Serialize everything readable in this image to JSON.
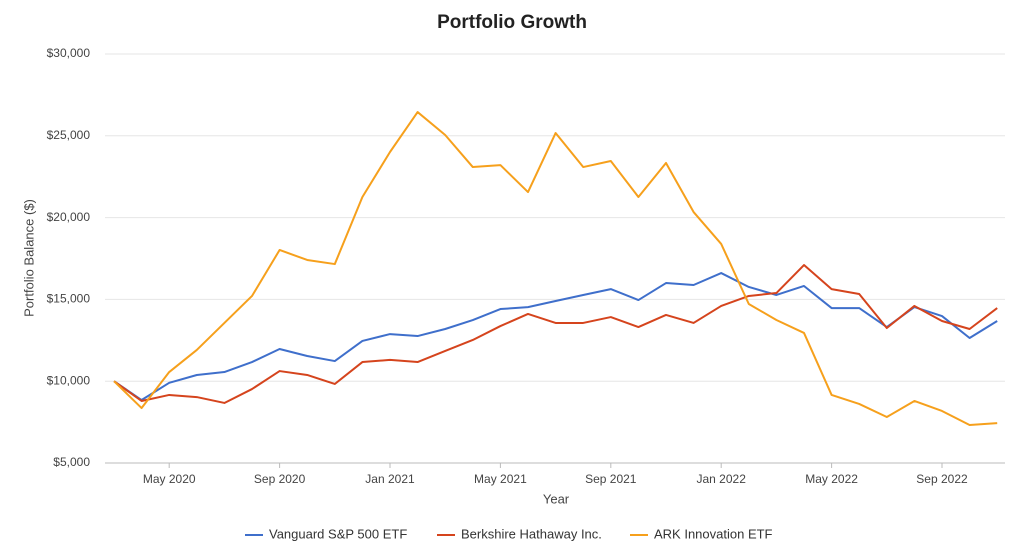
{
  "chart_data": {
    "type": "line",
    "title": "Portfolio Growth",
    "x_label": "Year",
    "y_label": "Portfolio Balance ($)",
    "x": [
      "Mar 2020",
      "Apr 2020",
      "May 2020",
      "Jun 2020",
      "Jul 2020",
      "Aug 2020",
      "Sep 2020",
      "Oct 2020",
      "Nov 2020",
      "Dec 2020",
      "Jan 2021",
      "Feb 2021",
      "Mar 2021",
      "Apr 2021",
      "May 2021",
      "Jun 2021",
      "Jul 2021",
      "Aug 2021",
      "Sep 2021",
      "Oct 2021",
      "Nov 2021",
      "Dec 2021",
      "Jan 2022",
      "Feb 2022",
      "Mar 2022",
      "Apr 2022",
      "May 2022",
      "Jun 2022",
      "Jul 2022",
      "Aug 2022",
      "Sep 2022",
      "Oct 2022",
      "Nov 2022"
    ],
    "xticks": [
      "May 2020",
      "Sep 2020",
      "Jan 2021",
      "May 2021",
      "Sep 2021",
      "Jan 2022",
      "May 2022",
      "Sep 2022"
    ],
    "ylim": [
      5000,
      30000
    ],
    "yticks": [
      {
        "value": 5000,
        "label": "$5,000"
      },
      {
        "value": 10000,
        "label": "$10,000"
      },
      {
        "value": 15000,
        "label": "$15,000"
      },
      {
        "value": 20000,
        "label": "$20,000"
      },
      {
        "value": 25000,
        "label": "$25,000"
      },
      {
        "value": 30000,
        "label": "$30,000"
      }
    ],
    "grid": true,
    "legend": "bottom",
    "series": [
      {
        "name": "Vanguard S&P 500 ETF",
        "color": "#3f6fcb",
        "values": [
          10000,
          8850,
          9900,
          10380,
          10560,
          11170,
          11970,
          11540,
          11230,
          12460,
          12880,
          12760,
          13190,
          13740,
          14410,
          14530,
          14900,
          15270,
          15630,
          14960,
          16000,
          15880,
          16610,
          15760,
          15270,
          15820,
          14470,
          14470,
          13310,
          14530,
          13980,
          12640,
          13680
        ]
      },
      {
        "name": "Berkshire Hathaway Inc.",
        "color": "#d5441d",
        "values": [
          10000,
          8790,
          9160,
          9030,
          8670,
          9520,
          10620,
          10380,
          9830,
          11170,
          11300,
          11170,
          11850,
          12520,
          13370,
          14110,
          13560,
          13560,
          13920,
          13310,
          14050,
          13560,
          14600,
          15210,
          15390,
          17100,
          15630,
          15330,
          13250,
          14600,
          13680,
          13190,
          14470
        ]
      },
      {
        "name": "ARK Innovation ETF",
        "color": "#f6a01c",
        "values": [
          10000,
          8360,
          10560,
          11910,
          13560,
          15210,
          18020,
          17410,
          17160,
          21260,
          24010,
          26450,
          25050,
          23090,
          23210,
          21560,
          25170,
          23090,
          23460,
          21260,
          23340,
          20340,
          18390,
          14720,
          13740,
          12950,
          9160,
          8610,
          7810,
          8790,
          8180,
          7320,
          7440
        ]
      }
    ]
  }
}
